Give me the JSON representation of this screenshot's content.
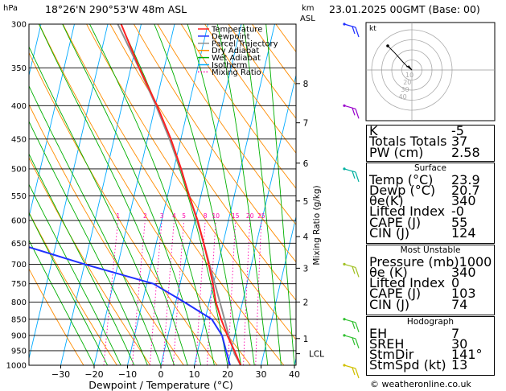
{
  "header": {
    "location": "18°26'N  290°53'W  48m  ASL",
    "datetime": "23.01.2025  00GMT  (Base: 00)",
    "hpa_label": "hPa",
    "km_label": "km",
    "asl_label": "ASL"
  },
  "xaxis_label": "Dewpoint / Temperature (°C)",
  "mixing_axis_label": "Mixing Ratio (g/kg)",
  "lcl_label": "LCL",
  "copyright": "© weatheronline.co.uk",
  "hodograph_unit": "kt",
  "legend": [
    {
      "label": "Temperature",
      "color": "#ff2020",
      "style": "solid"
    },
    {
      "label": "Dewpoint",
      "color": "#2030ff",
      "style": "solid"
    },
    {
      "label": "Parcel Trajectory",
      "color": "#909090",
      "style": "solid"
    },
    {
      "label": "Dry Adiabat",
      "color": "#ff8c00",
      "style": "solid"
    },
    {
      "label": "Wet Adiabat",
      "color": "#00b000",
      "style": "solid"
    },
    {
      "label": "Isotherm",
      "color": "#00aaff",
      "style": "solid"
    },
    {
      "label": "Mixing Ratio",
      "color": "#ff00aa",
      "style": "dotted"
    }
  ],
  "indices": [
    {
      "key": "K",
      "value": "-5"
    },
    {
      "key": "Totals Totals",
      "value": "37"
    },
    {
      "key": "PW (cm)",
      "value": "2.58"
    }
  ],
  "surface": {
    "title": "Surface",
    "rows": [
      {
        "key": "Temp (°C)",
        "value": "23.9"
      },
      {
        "key": "Dewp (°C)",
        "value": "20.7"
      },
      {
        "key": "θe(K)",
        "value": "340"
      },
      {
        "key": "Lifted Index",
        "value": "-0"
      },
      {
        "key": "CAPE (J)",
        "value": "55"
      },
      {
        "key": "CIN (J)",
        "value": "124"
      }
    ]
  },
  "most_unstable": {
    "title": "Most Unstable",
    "rows": [
      {
        "key": "Pressure (mb)",
        "value": "1000"
      },
      {
        "key": "θe (K)",
        "value": "340"
      },
      {
        "key": "Lifted Index",
        "value": "0"
      },
      {
        "key": "CAPE (J)",
        "value": "103"
      },
      {
        "key": "CIN (J)",
        "value": "74"
      }
    ]
  },
  "hodograph_table": {
    "title": "Hodograph",
    "rows": [
      {
        "key": "EH",
        "value": "7"
      },
      {
        "key": "SREH",
        "value": "30"
      },
      {
        "key": "StmDir",
        "value": "141°"
      },
      {
        "key": "StmSpd (kt)",
        "value": "13"
      }
    ]
  },
  "chart_data": {
    "type": "skew-t",
    "pressure_levels_hpa": [
      300,
      350,
      400,
      450,
      500,
      550,
      600,
      650,
      700,
      750,
      800,
      850,
      900,
      950,
      1000
    ],
    "pressure_tick_labels": [
      "300",
      "350",
      "400",
      "450",
      "500",
      "550",
      "600",
      "650",
      "700",
      "750",
      "800",
      "850",
      "900",
      "950",
      "1000"
    ],
    "temperature_ticks_c": [
      -30,
      -20,
      -10,
      0,
      10,
      20,
      30,
      40
    ],
    "temperature_tick_labels": [
      "−30",
      "−20",
      "−10",
      "0",
      "10",
      "20",
      "30",
      "40"
    ],
    "km_ticks": [
      {
        "label": "8",
        "p": 370
      },
      {
        "label": "7",
        "p": 425
      },
      {
        "label": "6",
        "p": 490
      },
      {
        "label": "5",
        "p": 560
      },
      {
        "label": "4",
        "p": 635
      },
      {
        "label": "3",
        "p": 710
      },
      {
        "label": "2",
        "p": 800
      },
      {
        "label": "1",
        "p": 910
      }
    ],
    "mixing_ratio_labels": [
      "1",
      "2",
      "3",
      "4",
      "5",
      "8",
      "10",
      "15",
      "20",
      "25"
    ],
    "mixing_ratio_values": [
      1,
      2,
      3,
      4,
      5,
      8,
      10,
      15,
      20,
      25
    ],
    "lcl_pressure_hpa": 960,
    "temperature_profile": [
      {
        "p": 1000,
        "t": 23.9
      },
      {
        "p": 950,
        "t": 21.0
      },
      {
        "p": 900,
        "t": 17.8
      },
      {
        "p": 850,
        "t": 14.8
      },
      {
        "p": 800,
        "t": 12.0
      },
      {
        "p": 750,
        "t": 9.8
      },
      {
        "p": 700,
        "t": 7.2
      },
      {
        "p": 650,
        "t": 4.2
      },
      {
        "p": 600,
        "t": 0.8
      },
      {
        "p": 550,
        "t": -3.5
      },
      {
        "p": 500,
        "t": -7.8
      },
      {
        "p": 450,
        "t": -13.0
      },
      {
        "p": 400,
        "t": -19.5
      },
      {
        "p": 350,
        "t": -27.5
      },
      {
        "p": 300,
        "t": -36.0
      }
    ],
    "dewpoint_profile": [
      {
        "p": 1000,
        "t": 20.7
      },
      {
        "p": 950,
        "t": 18.5
      },
      {
        "p": 900,
        "t": 16.2
      },
      {
        "p": 850,
        "t": 12.0
      },
      {
        "p": 800,
        "t": 2.5
      },
      {
        "p": 750,
        "t": -8.0
      },
      {
        "p": 700,
        "t": -30.0
      },
      {
        "p": 650,
        "t": -52.0
      },
      {
        "p": 600,
        "t": -50.0
      },
      {
        "p": 550,
        "t": -54.0
      },
      {
        "p": 500,
        "t": -62.0
      },
      {
        "p": 450,
        "t": -64.0
      },
      {
        "p": 400,
        "t": -70.0
      },
      {
        "p": 350,
        "t": -64.0
      },
      {
        "p": 300,
        "t": -76.0
      }
    ],
    "parcel_profile": [
      {
        "p": 1000,
        "t": 23.9
      },
      {
        "p": 960,
        "t": 21.2
      },
      {
        "p": 900,
        "t": 18.2
      },
      {
        "p": 850,
        "t": 15.8
      },
      {
        "p": 800,
        "t": 13.2
      },
      {
        "p": 750,
        "t": 10.4
      },
      {
        "p": 700,
        "t": 7.4
      },
      {
        "p": 650,
        "t": 4.2
      },
      {
        "p": 600,
        "t": 0.6
      },
      {
        "p": 550,
        "t": -3.4
      },
      {
        "p": 500,
        "t": -8.0
      },
      {
        "p": 450,
        "t": -13.4
      },
      {
        "p": 400,
        "t": -19.8
      },
      {
        "p": 350,
        "t": -27.6
      },
      {
        "p": 300,
        "t": -37.0
      }
    ],
    "hodograph_rings_kt": [
      10,
      20,
      30,
      40
    ],
    "hodograph_ring_labels": [
      "10",
      "20",
      "30",
      "40"
    ],
    "hodograph_points": [
      {
        "u": 0,
        "v": 0
      },
      {
        "u": -4,
        "v": 3
      },
      {
        "u": -9,
        "v": 8
      },
      {
        "u": -17,
        "v": 17
      },
      {
        "u": -24,
        "v": 24
      }
    ],
    "storm_motion": {
      "u": -3,
      "v": 4
    },
    "wind_barbs": [
      {
        "p": 300,
        "color": "#2030ff"
      },
      {
        "p": 400,
        "color": "#9900cc"
      },
      {
        "p": 500,
        "color": "#00b0a0"
      },
      {
        "p": 700,
        "color": "#a0c020"
      },
      {
        "p": 850,
        "color": "#30c030"
      },
      {
        "p": 900,
        "color": "#30c030"
      },
      {
        "p": 1000,
        "color": "#d0c000"
      }
    ]
  }
}
